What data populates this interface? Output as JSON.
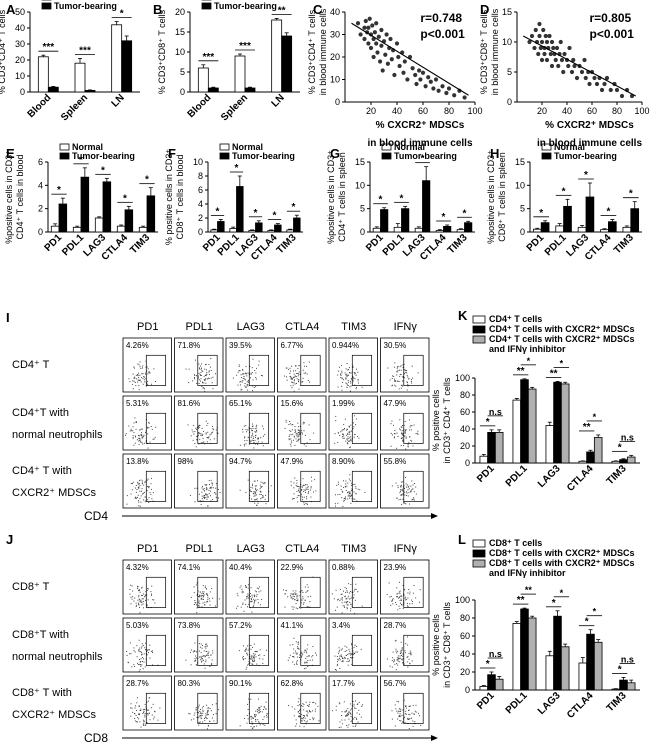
{
  "figure": {
    "panel_letters": [
      "A",
      "B",
      "C",
      "D",
      "E",
      "F",
      "G",
      "H",
      "I",
      "J",
      "K",
      "L"
    ],
    "colors": {
      "normal": "#ffffff",
      "tumor": "#000000",
      "grey": "#b0b0b0",
      "axis": "#000000",
      "dot": "#333333"
    },
    "legend": {
      "normal": "Normal",
      "tumor": "Tumor-bearing"
    },
    "significance": {
      "p001": "***",
      "p01": "**",
      "p05": "*",
      "ns": "n.s"
    }
  },
  "chart_data": [
    {
      "id": "A",
      "type": "bar",
      "ylabel": "% CD3⁺CD4⁺ T cells",
      "categories": [
        "Blood",
        "Spleen",
        "LN"
      ],
      "ylim": [
        0,
        50
      ],
      "yticks": [
        0,
        10,
        20,
        30,
        40,
        50
      ],
      "series": [
        {
          "name": "Normal",
          "values": [
            22,
            18,
            42
          ],
          "errors": [
            1,
            3,
            2
          ]
        },
        {
          "name": "Tumor-bearing",
          "values": [
            3,
            1,
            32
          ],
          "errors": [
            0.5,
            0.3,
            3
          ]
        }
      ],
      "annotations": [
        "***",
        "***",
        "*"
      ]
    },
    {
      "id": "B",
      "type": "bar",
      "ylabel": "% CD3⁺CD8⁺ T cells",
      "categories": [
        "Blood",
        "Spleen",
        "LN"
      ],
      "ylim": [
        0,
        20
      ],
      "yticks": [
        0,
        5,
        10,
        15,
        20
      ],
      "series": [
        {
          "name": "Normal",
          "values": [
            6,
            9,
            18
          ],
          "errors": [
            0.8,
            0.5,
            0.4
          ]
        },
        {
          "name": "Tumor-bearing",
          "values": [
            1,
            1,
            14
          ],
          "errors": [
            0.2,
            0.2,
            0.8
          ]
        }
      ],
      "annotations": [
        "***",
        "***",
        "**"
      ]
    },
    {
      "id": "C",
      "type": "scatter",
      "ylabel_lines": [
        "% CD3⁺CD4⁺ T cells",
        "in blood immune cells"
      ],
      "xlabel_lines": [
        "% CXCR2⁺ MDSCs",
        "in blood immune cells"
      ],
      "xlim": [
        0,
        100
      ],
      "ylim": [
        0,
        40
      ],
      "xticks": [
        20,
        40,
        60,
        80,
        100
      ],
      "yticks": [
        0,
        10,
        20,
        30,
        40
      ],
      "stats": [
        "r=0.748",
        "p<0.001"
      ],
      "fit": [
        [
          5,
          35
        ],
        [
          95,
          3
        ]
      ],
      "points": [
        [
          10,
          35
        ],
        [
          12,
          30
        ],
        [
          15,
          33
        ],
        [
          15,
          28
        ],
        [
          16,
          36
        ],
        [
          17,
          31
        ],
        [
          18,
          26
        ],
        [
          18,
          33
        ],
        [
          19,
          37
        ],
        [
          20,
          30
        ],
        [
          20,
          24
        ],
        [
          21,
          34
        ],
        [
          22,
          28
        ],
        [
          22,
          20
        ],
        [
          23,
          31
        ],
        [
          24,
          26
        ],
        [
          24,
          35
        ],
        [
          25,
          22
        ],
        [
          26,
          29
        ],
        [
          27,
          18
        ],
        [
          28,
          32
        ],
        [
          28,
          25
        ],
        [
          29,
          14
        ],
        [
          30,
          27
        ],
        [
          31,
          21
        ],
        [
          32,
          30
        ],
        [
          33,
          17
        ],
        [
          34,
          24
        ],
        [
          35,
          28
        ],
        [
          36,
          19
        ],
        [
          37,
          23
        ],
        [
          38,
          12
        ],
        [
          40,
          26
        ],
        [
          41,
          20
        ],
        [
          42,
          16
        ],
        [
          44,
          22
        ],
        [
          45,
          13
        ],
        [
          46,
          18
        ],
        [
          48,
          10
        ],
        [
          50,
          20
        ],
        [
          52,
          15
        ],
        [
          54,
          12
        ],
        [
          55,
          8
        ],
        [
          57,
          14
        ],
        [
          58,
          10
        ],
        [
          60,
          13
        ],
        [
          62,
          7
        ],
        [
          64,
          11
        ],
        [
          66,
          9
        ],
        [
          68,
          6
        ],
        [
          70,
          10
        ],
        [
          72,
          5
        ],
        [
          75,
          7
        ],
        [
          78,
          4
        ],
        [
          80,
          6
        ],
        [
          84,
          3
        ],
        [
          88,
          5
        ],
        [
          92,
          2
        ]
      ]
    },
    {
      "id": "D",
      "type": "scatter",
      "ylabel_lines": [
        "% CD3⁺CD8⁺ T cells",
        "in blood immune cells"
      ],
      "xlabel_lines": [
        "% CXCR2⁺ MDSCs",
        "in blood immune cells"
      ],
      "xlim": [
        0,
        100
      ],
      "ylim": [
        0,
        15
      ],
      "xticks": [
        20,
        40,
        60,
        80,
        100
      ],
      "yticks": [
        0,
        5,
        10,
        15
      ],
      "stats": [
        "r=0.805",
        "p<0.001"
      ],
      "fit": [
        [
          5,
          11
        ],
        [
          95,
          1
        ]
      ],
      "points": [
        [
          10,
          10
        ],
        [
          12,
          11
        ],
        [
          14,
          9
        ],
        [
          15,
          12
        ],
        [
          16,
          10
        ],
        [
          17,
          8
        ],
        [
          18,
          11
        ],
        [
          18,
          13
        ],
        [
          19,
          9
        ],
        [
          20,
          10
        ],
        [
          20,
          7
        ],
        [
          21,
          12
        ],
        [
          22,
          9
        ],
        [
          22,
          8
        ],
        [
          23,
          11
        ],
        [
          24,
          10
        ],
        [
          24,
          7
        ],
        [
          25,
          9
        ],
        [
          26,
          11
        ],
        [
          27,
          8
        ],
        [
          28,
          10
        ],
        [
          28,
          6
        ],
        [
          29,
          9
        ],
        [
          30,
          8
        ],
        [
          31,
          7
        ],
        [
          32,
          9
        ],
        [
          33,
          6
        ],
        [
          34,
          8
        ],
        [
          35,
          10
        ],
        [
          36,
          7
        ],
        [
          37,
          5
        ],
        [
          38,
          8
        ],
        [
          40,
          7
        ],
        [
          41,
          6
        ],
        [
          42,
          9
        ],
        [
          44,
          5
        ],
        [
          45,
          7
        ],
        [
          46,
          6
        ],
        [
          48,
          4
        ],
        [
          50,
          6
        ],
        [
          52,
          5
        ],
        [
          54,
          7
        ],
        [
          55,
          4
        ],
        [
          57,
          5
        ],
        [
          58,
          3
        ],
        [
          60,
          5
        ],
        [
          62,
          4
        ],
        [
          64,
          3
        ],
        [
          66,
          4
        ],
        [
          68,
          2
        ],
        [
          70,
          3
        ],
        [
          72,
          4
        ],
        [
          75,
          2
        ],
        [
          78,
          3
        ],
        [
          80,
          2
        ],
        [
          84,
          1
        ],
        [
          88,
          2
        ],
        [
          92,
          1
        ]
      ]
    },
    {
      "id": "E",
      "type": "bar",
      "ylabel_lines": [
        "%positive cells in CD3⁺",
        "CD4⁺ T cells in blood"
      ],
      "categories": [
        "PD1",
        "PDL1",
        "LAG3",
        "CTLA4",
        "TIM3"
      ],
      "ylim": [
        0,
        6
      ],
      "yticks": [
        0,
        2,
        4,
        6
      ],
      "series": [
        {
          "name": "Normal",
          "values": [
            0.5,
            0.4,
            1.2,
            0.5,
            0.4
          ],
          "errors": [
            0.2,
            0.1,
            0.1,
            0.1,
            0.1
          ]
        },
        {
          "name": "Tumor-bearing",
          "values": [
            2.4,
            4.7,
            4.3,
            1.9,
            3.1
          ],
          "errors": [
            0.5,
            0.8,
            0.3,
            0.3,
            0.7
          ]
        }
      ],
      "annotations": [
        "*",
        "*",
        "*",
        "*",
        "*"
      ]
    },
    {
      "id": "F",
      "type": "bar",
      "ylabel_lines": [
        "% positive cells in CD3⁺",
        "CD8⁺ T cells in blood"
      ],
      "categories": [
        "PD1",
        "PDL1",
        "LAG3",
        "CTLA4",
        "TIM3"
      ],
      "ylim": [
        0,
        10
      ],
      "yticks": [
        0,
        2,
        4,
        6,
        8,
        10
      ],
      "series": [
        {
          "name": "Normal",
          "values": [
            0.3,
            0.5,
            0.2,
            0.2,
            0.3
          ],
          "errors": [
            0.1,
            0.2,
            0.1,
            0.1,
            0.1
          ]
        },
        {
          "name": "Tumor-bearing",
          "values": [
            1.5,
            6.5,
            1.3,
            1.0,
            2.0
          ],
          "errors": [
            0.3,
            1.5,
            0.3,
            0.2,
            0.4
          ]
        }
      ],
      "annotations": [
        "*",
        "*",
        "*",
        "*",
        "*"
      ]
    },
    {
      "id": "G",
      "type": "bar",
      "ylabel_lines": [
        "%positive cells in CD3⁺",
        "CD4⁺ T cells in spleen"
      ],
      "categories": [
        "PD1",
        "PDL1",
        "LAG3",
        "CTLA4",
        "TIM3"
      ],
      "ylim": [
        0,
        15
      ],
      "yticks": [
        0,
        5,
        10,
        15
      ],
      "series": [
        {
          "name": "Normal",
          "values": [
            0.8,
            1.0,
            0.8,
            0.3,
            0.5
          ],
          "errors": [
            0.3,
            0.8,
            0.3,
            0.2,
            0.2
          ]
        },
        {
          "name": "Tumor-bearing",
          "values": [
            4.8,
            5.0,
            11.0,
            1.2,
            2.0
          ],
          "errors": [
            0.4,
            0.5,
            3.0,
            0.3,
            0.3
          ]
        }
      ],
      "annotations": [
        "*",
        "*",
        "*",
        "*",
        "*"
      ]
    },
    {
      "id": "H",
      "type": "bar",
      "ylabel_lines": [
        "%positive cells in CD3⁺",
        "CD8⁺ T cells in spleen"
      ],
      "categories": [
        "PD1",
        "PDL1",
        "LAG3",
        "CTLA4",
        "TIM3"
      ],
      "ylim": [
        0,
        15
      ],
      "yticks": [
        0,
        5,
        10,
        15
      ],
      "series": [
        {
          "name": "Normal",
          "values": [
            0.6,
            1.3,
            1.0,
            0.5,
            1.0
          ],
          "errors": [
            0.2,
            0.5,
            0.4,
            0.2,
            0.3
          ]
        },
        {
          "name": "Tumor-bearing",
          "values": [
            2.0,
            5.5,
            7.5,
            2.2,
            5.0
          ],
          "errors": [
            0.4,
            1.5,
            3.0,
            0.5,
            1.5
          ]
        }
      ],
      "annotations": [
        "*",
        "*",
        "*",
        "*",
        "*"
      ]
    },
    {
      "id": "K",
      "type": "bar",
      "ylabel_lines": [
        "% positive cells",
        "in CD3⁺ CD4⁺ T cells"
      ],
      "categories": [
        "PD1",
        "PDL1",
        "LAG3",
        "CTLA4",
        "TIM3"
      ],
      "ylim": [
        0,
        100
      ],
      "yticks": [
        0,
        20,
        40,
        60,
        80,
        100
      ],
      "legend": [
        "CD4⁺ T cells",
        "CD4⁺ T cells with CXCR2⁺ MDSCs",
        "CD4⁺ T cells with CXCR2⁺ MDSCs",
        "and IFNγ inhibitor"
      ],
      "series": [
        {
          "name": "CD4⁺ T cells",
          "values": [
            8,
            74,
            44,
            2,
            2
          ],
          "errors": [
            2,
            2,
            4,
            0.5,
            0.5
          ]
        },
        {
          "name": "CD4⁺ T cells with CXCR2⁺ MDSCs",
          "values": [
            36,
            98,
            95,
            13,
            4
          ],
          "errors": [
            3,
            1,
            1,
            2,
            1
          ]
        },
        {
          "name": "CD4⁺ T cells with CXCR2⁺ MDSCs and IFNγ inhibitor",
          "values": [
            36,
            87,
            93,
            30,
            7
          ],
          "errors": [
            3,
            2,
            2,
            3,
            2
          ]
        }
      ],
      "annotations": [
        "*",
        "**",
        "**",
        "**",
        "*"
      ],
      "annotations2": [
        "n.s",
        "*",
        "*",
        "*",
        "n.s"
      ]
    },
    {
      "id": "L",
      "type": "bar",
      "ylabel_lines": [
        "% positive cells",
        "in CD3⁺ CD8⁺ T cells"
      ],
      "categories": [
        "PD1",
        "PDL1",
        "LAG3",
        "CTLA4",
        "TIM3"
      ],
      "ylim": [
        0,
        100
      ],
      "yticks": [
        0,
        20,
        40,
        60,
        80,
        100
      ],
      "legend": [
        "CD8⁺ T cells",
        "CD8⁺ T cells with CXCR2⁺ MDSCs",
        "CD8⁺ T cells with CXCR2⁺ MDSCs",
        "and IFNγ inhibitor"
      ],
      "series": [
        {
          "name": "CD8⁺ T cells",
          "values": [
            4,
            74,
            38,
            30,
            1
          ],
          "errors": [
            1,
            2,
            5,
            6,
            0.5
          ]
        },
        {
          "name": "CD8⁺ T cells with CXCR2⁺ MDSCs",
          "values": [
            17,
            90,
            82,
            62,
            11
          ],
          "errors": [
            3,
            1,
            6,
            5,
            3
          ]
        },
        {
          "name": "CD8⁺ T cells with CXCR2⁺ MDSCs and IFNγ inhibitor",
          "values": [
            12,
            80,
            48,
            53,
            8
          ],
          "errors": [
            3,
            2,
            3,
            3,
            3
          ]
        }
      ],
      "annotations": [
        "*",
        "**",
        "*",
        "*",
        "*"
      ],
      "annotations2": [
        "n.s",
        "**",
        "*",
        "*",
        "n.s"
      ]
    }
  ],
  "flow_panels": [
    {
      "id": "I",
      "columns": [
        "PD1",
        "PDL1",
        "LAG3",
        "CTLA4",
        "TIM3",
        "IFNγ"
      ],
      "axis_label": "CD4",
      "rows": [
        {
          "label_lines": [
            "CD4⁺ T"
          ],
          "values": [
            "4.26%",
            "71.8%",
            "39.5%",
            "6.77%",
            "0.944%",
            "30.5%"
          ]
        },
        {
          "label_lines": [
            "CD4⁺T with",
            "normal neutrophils"
          ],
          "values": [
            "5.31%",
            "81.6%",
            "65.1%",
            "15.6%",
            "1.99%",
            "47.9%"
          ]
        },
        {
          "label_lines": [
            "CD4⁺ T with",
            "CXCR2⁺ MDSCs"
          ],
          "values": [
            "13.8%",
            "98%",
            "94.7%",
            "47.9%",
            "8.90%",
            "55.8%"
          ]
        }
      ]
    },
    {
      "id": "J",
      "columns": [
        "PD1",
        "PDL1",
        "LAG3",
        "CTLA4",
        "TIM3",
        "IFNγ"
      ],
      "axis_label": "CD8",
      "rows": [
        {
          "label_lines": [
            "CD8⁺ T"
          ],
          "values": [
            "4.32%",
            "74.1%",
            "40.4%",
            "22.9%",
            "0.88%",
            "23.9%"
          ]
        },
        {
          "label_lines": [
            "CD8⁺T with",
            "normal neutrophils"
          ],
          "values": [
            "5.03%",
            "73.8%",
            "57.2%",
            "41.1%",
            "3.4%",
            "28.7%"
          ]
        },
        {
          "label_lines": [
            "CD8⁺ T with",
            "CXCR2⁺ MDSCs"
          ],
          "values": [
            "28.7%",
            "80.3%",
            "90.1%",
            "62.8%",
            "17.7%",
            "56.7%"
          ]
        }
      ]
    }
  ]
}
